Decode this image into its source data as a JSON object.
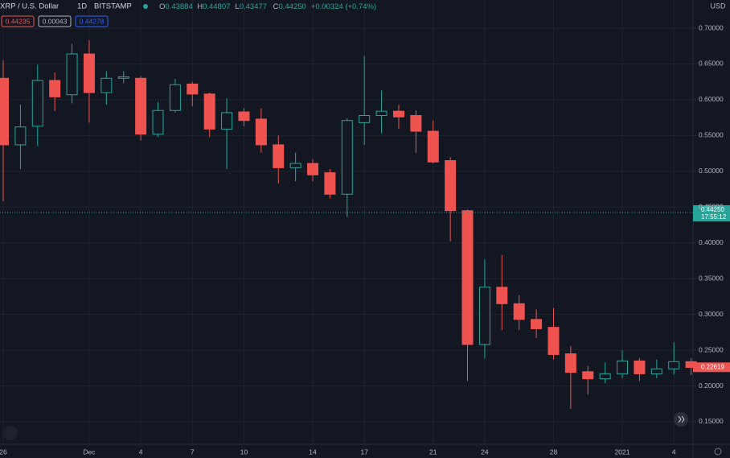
{
  "chart_data": {
    "type": "candlestick",
    "symbol": "XRP / U.S. Dollar",
    "interval": "1D",
    "exchange": "BITSTAMP",
    "currency": "USD",
    "ohlc_legend": [
      {
        "label": "O",
        "value": "0.43884"
      },
      {
        "label": "H",
        "value": "0.44807"
      },
      {
        "label": "L",
        "value": "0.43477"
      },
      {
        "label": "C",
        "value": "0.44250"
      },
      {
        "label": "",
        "value": "+0.00324 (+0.74%)"
      }
    ],
    "quote_boxes": [
      {
        "label": "0.44235",
        "color": "#ef5350"
      },
      {
        "label": "0.00043",
        "color": "#b2b5be"
      },
      {
        "label": "0.44278",
        "color": "#2962ff"
      }
    ],
    "categories": [
      "26",
      null,
      null,
      null,
      null,
      "Dec",
      null,
      null,
      "4",
      null,
      null,
      "7",
      null,
      null,
      "10",
      null,
      null,
      null,
      "14",
      null,
      null,
      "17",
      null,
      null,
      null,
      "21",
      null,
      null,
      "24",
      null,
      null,
      null,
      "28",
      null,
      null,
      null,
      "2021",
      null,
      null,
      "4",
      null
    ],
    "open": [
      0.63,
      0.537,
      0.563,
      0.627,
      0.607,
      0.664,
      0.61,
      0.63,
      0.63,
      0.552,
      0.585,
      0.622,
      0.608,
      0.559,
      0.583,
      0.573,
      0.537,
      0.505,
      0.511,
      0.498,
      0.468,
      0.568,
      0.578,
      0.584,
      0.578,
      0.556,
      0.515,
      0.445,
      0.258,
      0.338,
      0.315,
      0.293,
      0.282,
      0.245,
      0.22,
      0.21,
      0.217,
      0.235,
      0.217,
      0.224,
      0.234
    ],
    "high": [
      0.655,
      0.593,
      0.649,
      0.638,
      0.678,
      0.683,
      0.64,
      0.64,
      0.633,
      0.597,
      0.629,
      0.625,
      0.61,
      0.602,
      0.588,
      0.588,
      0.55,
      0.526,
      0.517,
      0.503,
      0.574,
      0.661,
      0.613,
      0.593,
      0.585,
      0.571,
      0.52,
      0.447,
      0.377,
      0.383,
      0.327,
      0.307,
      0.309,
      0.256,
      0.228,
      0.233,
      0.25,
      0.239,
      0.237,
      0.261,
      0.239
    ],
    "low": [
      0.458,
      0.503,
      0.535,
      0.584,
      0.595,
      0.568,
      0.593,
      0.623,
      0.543,
      0.548,
      0.582,
      0.591,
      0.548,
      0.503,
      0.563,
      0.526,
      0.483,
      0.486,
      0.486,
      0.462,
      0.436,
      0.537,
      0.553,
      0.559,
      0.526,
      0.511,
      0.402,
      0.207,
      0.239,
      0.278,
      0.278,
      0.267,
      0.237,
      0.168,
      0.188,
      0.204,
      0.211,
      0.207,
      0.211,
      0.216,
      0.215
    ],
    "close": [
      0.537,
      0.562,
      0.627,
      0.604,
      0.664,
      0.61,
      0.63,
      0.632,
      0.552,
      0.585,
      0.621,
      0.608,
      0.559,
      0.582,
      0.571,
      0.537,
      0.505,
      0.511,
      0.495,
      0.468,
      0.571,
      0.578,
      0.584,
      0.576,
      0.556,
      0.513,
      0.445,
      0.258,
      0.338,
      0.315,
      0.293,
      0.28,
      0.244,
      0.219,
      0.21,
      0.217,
      0.235,
      0.217,
      0.224,
      0.234,
      0.226
    ],
    "up_color": "#26a69a",
    "down_color": "#ef5350",
    "ylim": [
      0.1185,
      0.7394
    ],
    "yticks": [
      {
        "value": 0.15,
        "label": "0.15000"
      },
      {
        "value": 0.2,
        "label": "0.20000"
      },
      {
        "value": 0.25,
        "label": "0.25000"
      },
      {
        "value": 0.3,
        "label": "0.30000"
      },
      {
        "value": 0.35,
        "label": "0.35000"
      },
      {
        "value": 0.4,
        "label": "0.40000"
      },
      {
        "value": 0.45,
        "label": "0.45000"
      },
      {
        "value": 0.5,
        "label": "0.50000"
      },
      {
        "value": 0.55,
        "label": "0.55000"
      },
      {
        "value": 0.6,
        "label": "0.60000"
      },
      {
        "value": 0.65,
        "label": "0.65000"
      },
      {
        "value": 0.7,
        "label": "0.70000"
      }
    ],
    "grid": true,
    "last_price": {
      "value": 0.4425,
      "label": "0.44250",
      "countdown": "17:55:12",
      "color": "#26a69a"
    },
    "price_marker": {
      "value": 0.22619,
      "label": "0.22619",
      "color": "#ef5350"
    }
  }
}
